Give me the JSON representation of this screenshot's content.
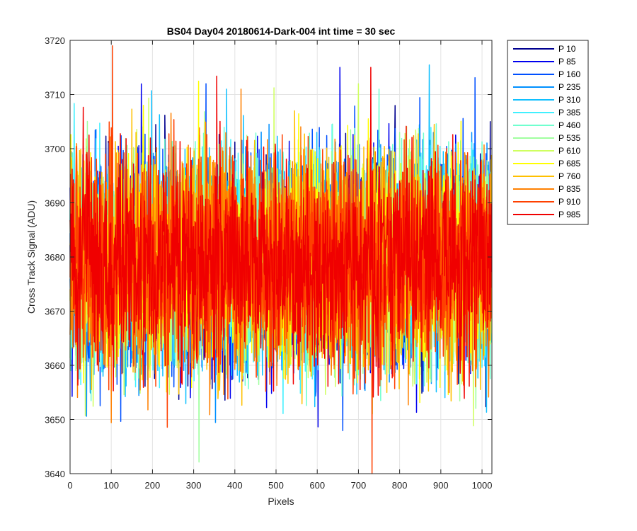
{
  "chart_data": {
    "type": "line",
    "title": "BS04 Day04 20180614-Dark-004 int time = 30 sec",
    "xlabel": "Pixels",
    "ylabel": "Cross Track Signal (ADU)",
    "xlim": [
      0,
      1024
    ],
    "ylim": [
      3640,
      3720
    ],
    "xticks": [
      0,
      100,
      200,
      300,
      400,
      500,
      600,
      700,
      800,
      900,
      1000
    ],
    "yticks": [
      3640,
      3650,
      3660,
      3670,
      3680,
      3690,
      3700,
      3710,
      3720
    ],
    "grid": true,
    "legend_position": "outside-top-right",
    "noise_model": {
      "mean": 3679,
      "typical_range": [
        3660,
        3698
      ],
      "n_points": 1024
    },
    "series": [
      {
        "name": "P 10",
        "color": "#00008f",
        "peak": {
          "x": 1020,
          "y": 3705
        }
      },
      {
        "name": "P 85",
        "color": "#0000ef",
        "peak": {
          "x": 655,
          "y": 3715
        }
      },
      {
        "name": "P 160",
        "color": "#0050ff",
        "peak": {
          "x": 330,
          "y": 3712
        }
      },
      {
        "name": "P 235",
        "color": "#0090ff",
        "peak": {
          "x": 975,
          "y": 3703
        }
      },
      {
        "name": "P 310",
        "color": "#10c0ff",
        "peak": {
          "x": 380,
          "y": 3711
        }
      },
      {
        "name": "P 385",
        "color": "#40f0ff",
        "peak": {
          "x": 580,
          "y": 3702
        }
      },
      {
        "name": "P 460",
        "color": "#70ffcf",
        "peak": {
          "x": 750,
          "y": 3711
        }
      },
      {
        "name": "P 535",
        "color": "#a0ff9f",
        "peak": {
          "x": 800,
          "y": 3703
        }
      },
      {
        "name": "P 610",
        "color": "#cfff60",
        "peak": {
          "x": 700,
          "y": 3712
        }
      },
      {
        "name": "P 685",
        "color": "#ffff00",
        "peak": {
          "x": 178,
          "y": 3708
        }
      },
      {
        "name": "P 760",
        "color": "#ffc000",
        "peak": {
          "x": 545,
          "y": 3707
        }
      },
      {
        "name": "P 835",
        "color": "#ff8000",
        "peak": {
          "x": 415,
          "y": 3711
        }
      },
      {
        "name": "P 910",
        "color": "#ff4000",
        "peak": {
          "x": 103,
          "y": 3719
        }
      },
      {
        "name": "P 985",
        "color": "#f00000",
        "peak": {
          "x": 730,
          "y": 3715
        }
      }
    ]
  }
}
